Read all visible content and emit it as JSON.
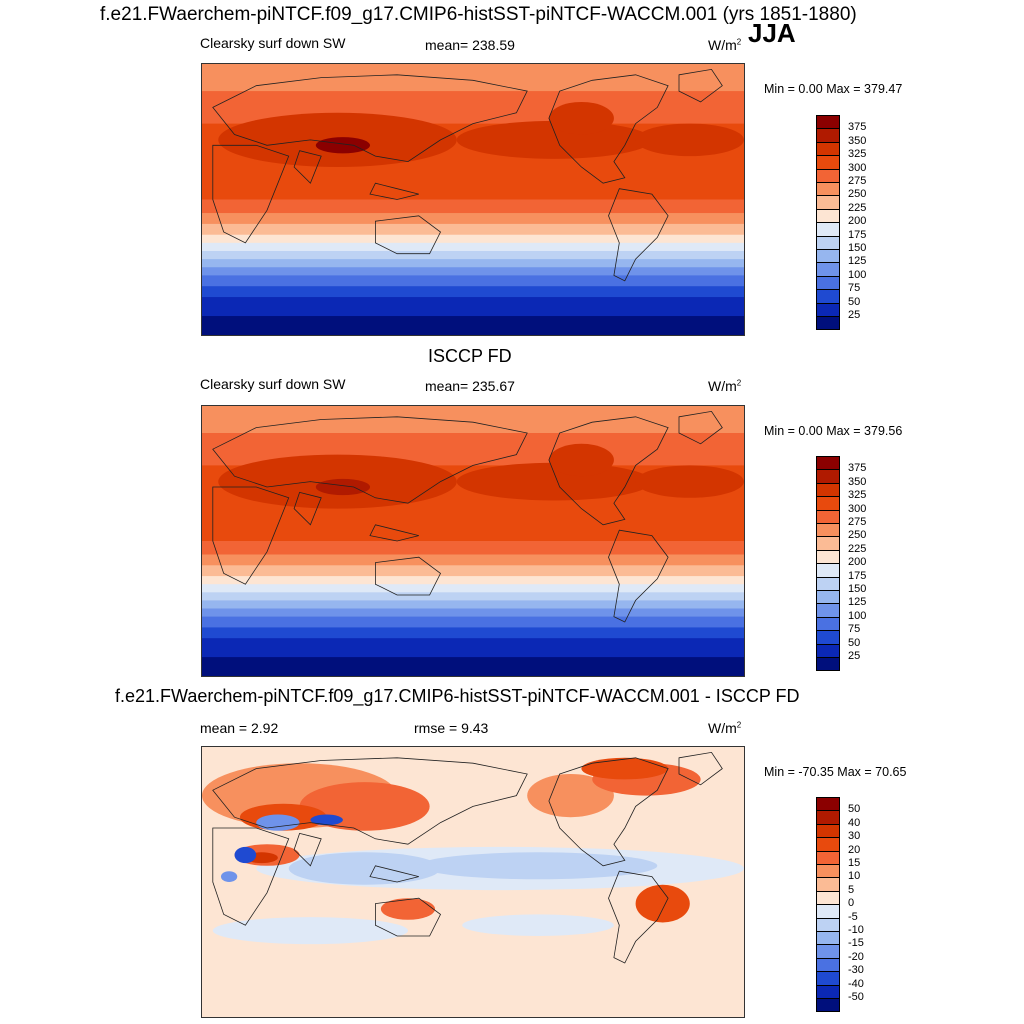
{
  "header": {
    "title": "f.e21.FWaerchem-piNTCF.f09_g17.CMIP6-histSST-piNTCF-WACCM.001 (yrs 1851-1880)",
    "season": "JJA"
  },
  "panels": [
    {
      "id": "model",
      "variable": "Clearsky surf down SW",
      "stat": "mean= 238.59",
      "unit": "W/m",
      "unit_sup": "2",
      "minmax": "Min =   0.00 Max = 379.47",
      "colorbar_ticks": [
        "375",
        "350",
        "325",
        "300",
        "275",
        "250",
        "225",
        "200",
        "175",
        "150",
        "125",
        "100",
        "75",
        "50",
        "25"
      ]
    },
    {
      "id": "obs",
      "heading": "ISCCP FD",
      "variable": "Clearsky surf down SW",
      "stat": "mean= 235.67",
      "unit": "W/m",
      "unit_sup": "2",
      "minmax": "Min =   0.00 Max = 379.56",
      "colorbar_ticks": [
        "375",
        "350",
        "325",
        "300",
        "275",
        "250",
        "225",
        "200",
        "175",
        "150",
        "125",
        "100",
        "75",
        "50",
        "25"
      ]
    },
    {
      "id": "diff",
      "heading": "f.e21.FWaerchem-piNTCF.f09_g17.CMIP6-histSST-piNTCF-WACCM.001 - ISCCP FD",
      "variable": "mean =   2.92",
      "stat": "rmse =   9.43",
      "unit": "W/m",
      "unit_sup": "2",
      "minmax": "Min = -70.35 Max =  70.65",
      "colorbar_ticks": [
        "50",
        "40",
        "30",
        "20",
        "15",
        "10",
        "5",
        "0",
        "-5",
        "-10",
        "-15",
        "-20",
        "-30",
        "-40",
        "-50"
      ]
    }
  ],
  "colors": {
    "sw_scale": [
      "#8b0000",
      "#b01a00",
      "#d33500",
      "#e84a0d",
      "#f26435",
      "#f7905e",
      "#fbbb95",
      "#fde5d3",
      "#dfe9f7",
      "#bdd2f3",
      "#96b6ef",
      "#6f93ea",
      "#4a71e2",
      "#1f4ad1",
      "#0b28b5",
      "#000f7c"
    ],
    "diff_scale": [
      "#8b0000",
      "#b01a00",
      "#d33500",
      "#e84a0d",
      "#f26435",
      "#f7905e",
      "#fbbb95",
      "#fde5d3",
      "#dfe9f7",
      "#bdd2f3",
      "#96b6ef",
      "#6f93ea",
      "#4a71e2",
      "#1f4ad1",
      "#0b28b5",
      "#000f7c"
    ]
  }
}
